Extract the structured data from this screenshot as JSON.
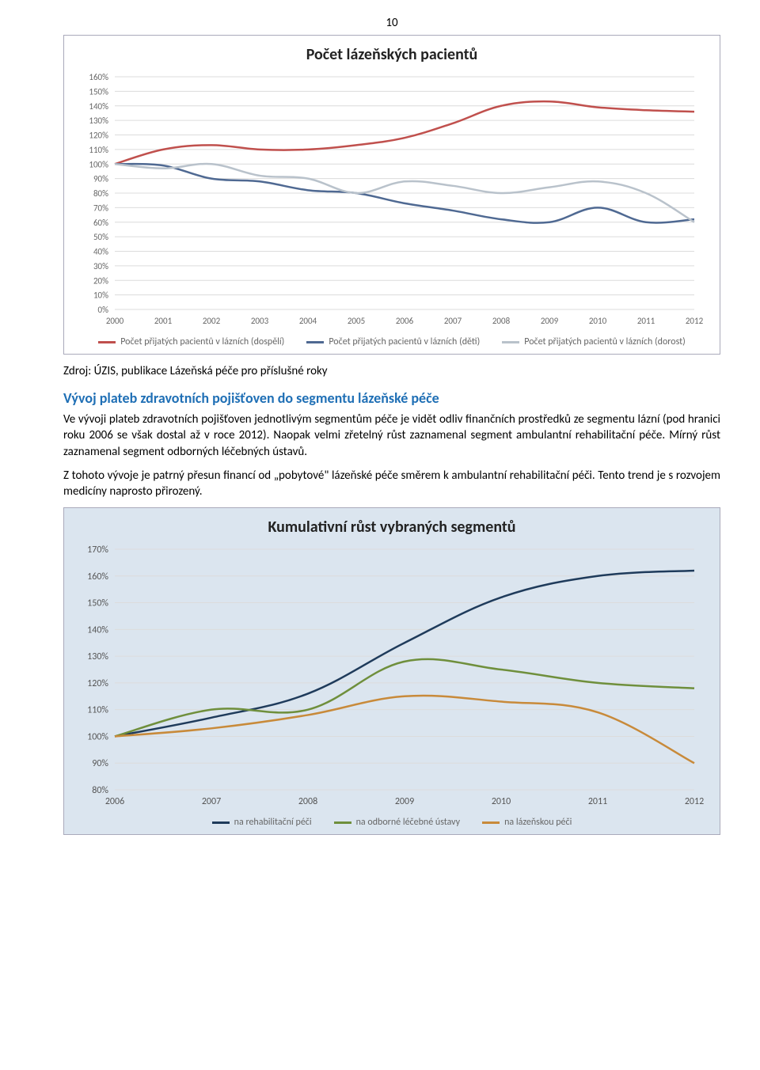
{
  "page_number": "10",
  "chart1": {
    "type": "line",
    "title": "Počet lázeňských pacientů",
    "background": "#ffffff",
    "grid_color": "#dcdcdc",
    "axis_text_color": "#666666",
    "y_label_suffix": "%",
    "ylim": [
      0,
      160
    ],
    "ytick_step": 10,
    "categories": [
      "2000",
      "2001",
      "2002",
      "2003",
      "2004",
      "2005",
      "2006",
      "2007",
      "2008",
      "2009",
      "2010",
      "2011",
      "2012"
    ],
    "series": [
      {
        "name": "Počet přijatých pacientů v lázních (dospělí)",
        "color": "#c0504d",
        "values": [
          100,
          110,
          113,
          110,
          110,
          113,
          118,
          128,
          140,
          143,
          139,
          137,
          136
        ]
      },
      {
        "name": "Počet přijatých pacientů v lázních (děti)",
        "color": "#4f6992",
        "values": [
          100,
          99,
          90,
          88,
          82,
          80,
          73,
          68,
          62,
          60,
          70,
          60,
          62
        ]
      },
      {
        "name": "Počet přijatých pacientů v lázních (dorost)",
        "color": "#b9c2cb",
        "values": [
          100,
          97,
          100,
          92,
          90,
          80,
          88,
          85,
          80,
          84,
          88,
          80,
          60
        ]
      }
    ],
    "title_fontsize": 20,
    "axis_fontsize": 11,
    "legend_fontsize": 12,
    "line_width": 2.5
  },
  "source_line": "Zdroj: ÚZIS, publikace Lázeňská péče pro příslušné roky",
  "section_heading": "Vývoj plateb zdravotních pojišťoven do segmentu lázeňské péče",
  "para1": "Ve vývoji plateb zdravotních pojišťoven jednotlivým segmentům péče je vidět odliv finančních prostředků ze segmentu lázní (pod hranici roku 2006 se však dostal až v roce 2012). Naopak velmi zřetelný růst zaznamenal segment ambulantní rehabilitační péče. Mírný růst zaznamenal segment odborných léčebných ústavů.",
  "para2": "Z tohoto vývoje je patrný přesun financí od „pobytové\" lázeňské péče směrem k ambulantní rehabilitační péči. Tento trend je s rozvojem medicíny naprosto přirozený.",
  "chart2": {
    "type": "line",
    "title": "Kumulativní růst vybraných segmentů",
    "background": "#dbe5ef",
    "plot_bg": "#dbe5ef",
    "grid_color": "#bcc8d4",
    "axis_text_color": "#555555",
    "y_label_suffix": "%",
    "ylim": [
      80,
      170
    ],
    "ytick_step": 10,
    "categories": [
      "2006",
      "2007",
      "2008",
      "2009",
      "2010",
      "2011",
      "2012"
    ],
    "series": [
      {
        "name": "na rehabilitační péči",
        "color": "#1f3b5b",
        "values": [
          100,
          107,
          116,
          135,
          152,
          160,
          162
        ]
      },
      {
        "name": "na odborné léčebné ústavy",
        "color": "#6f8f3c",
        "values": [
          100,
          110,
          110,
          128,
          125,
          120,
          118
        ]
      },
      {
        "name": "na lázeňskou péči",
        "color": "#c88a3a",
        "values": [
          100,
          103,
          108,
          115,
          113,
          109,
          90
        ]
      }
    ],
    "title_fontsize": 20,
    "axis_fontsize": 12,
    "legend_fontsize": 12,
    "line_width": 2.5
  }
}
